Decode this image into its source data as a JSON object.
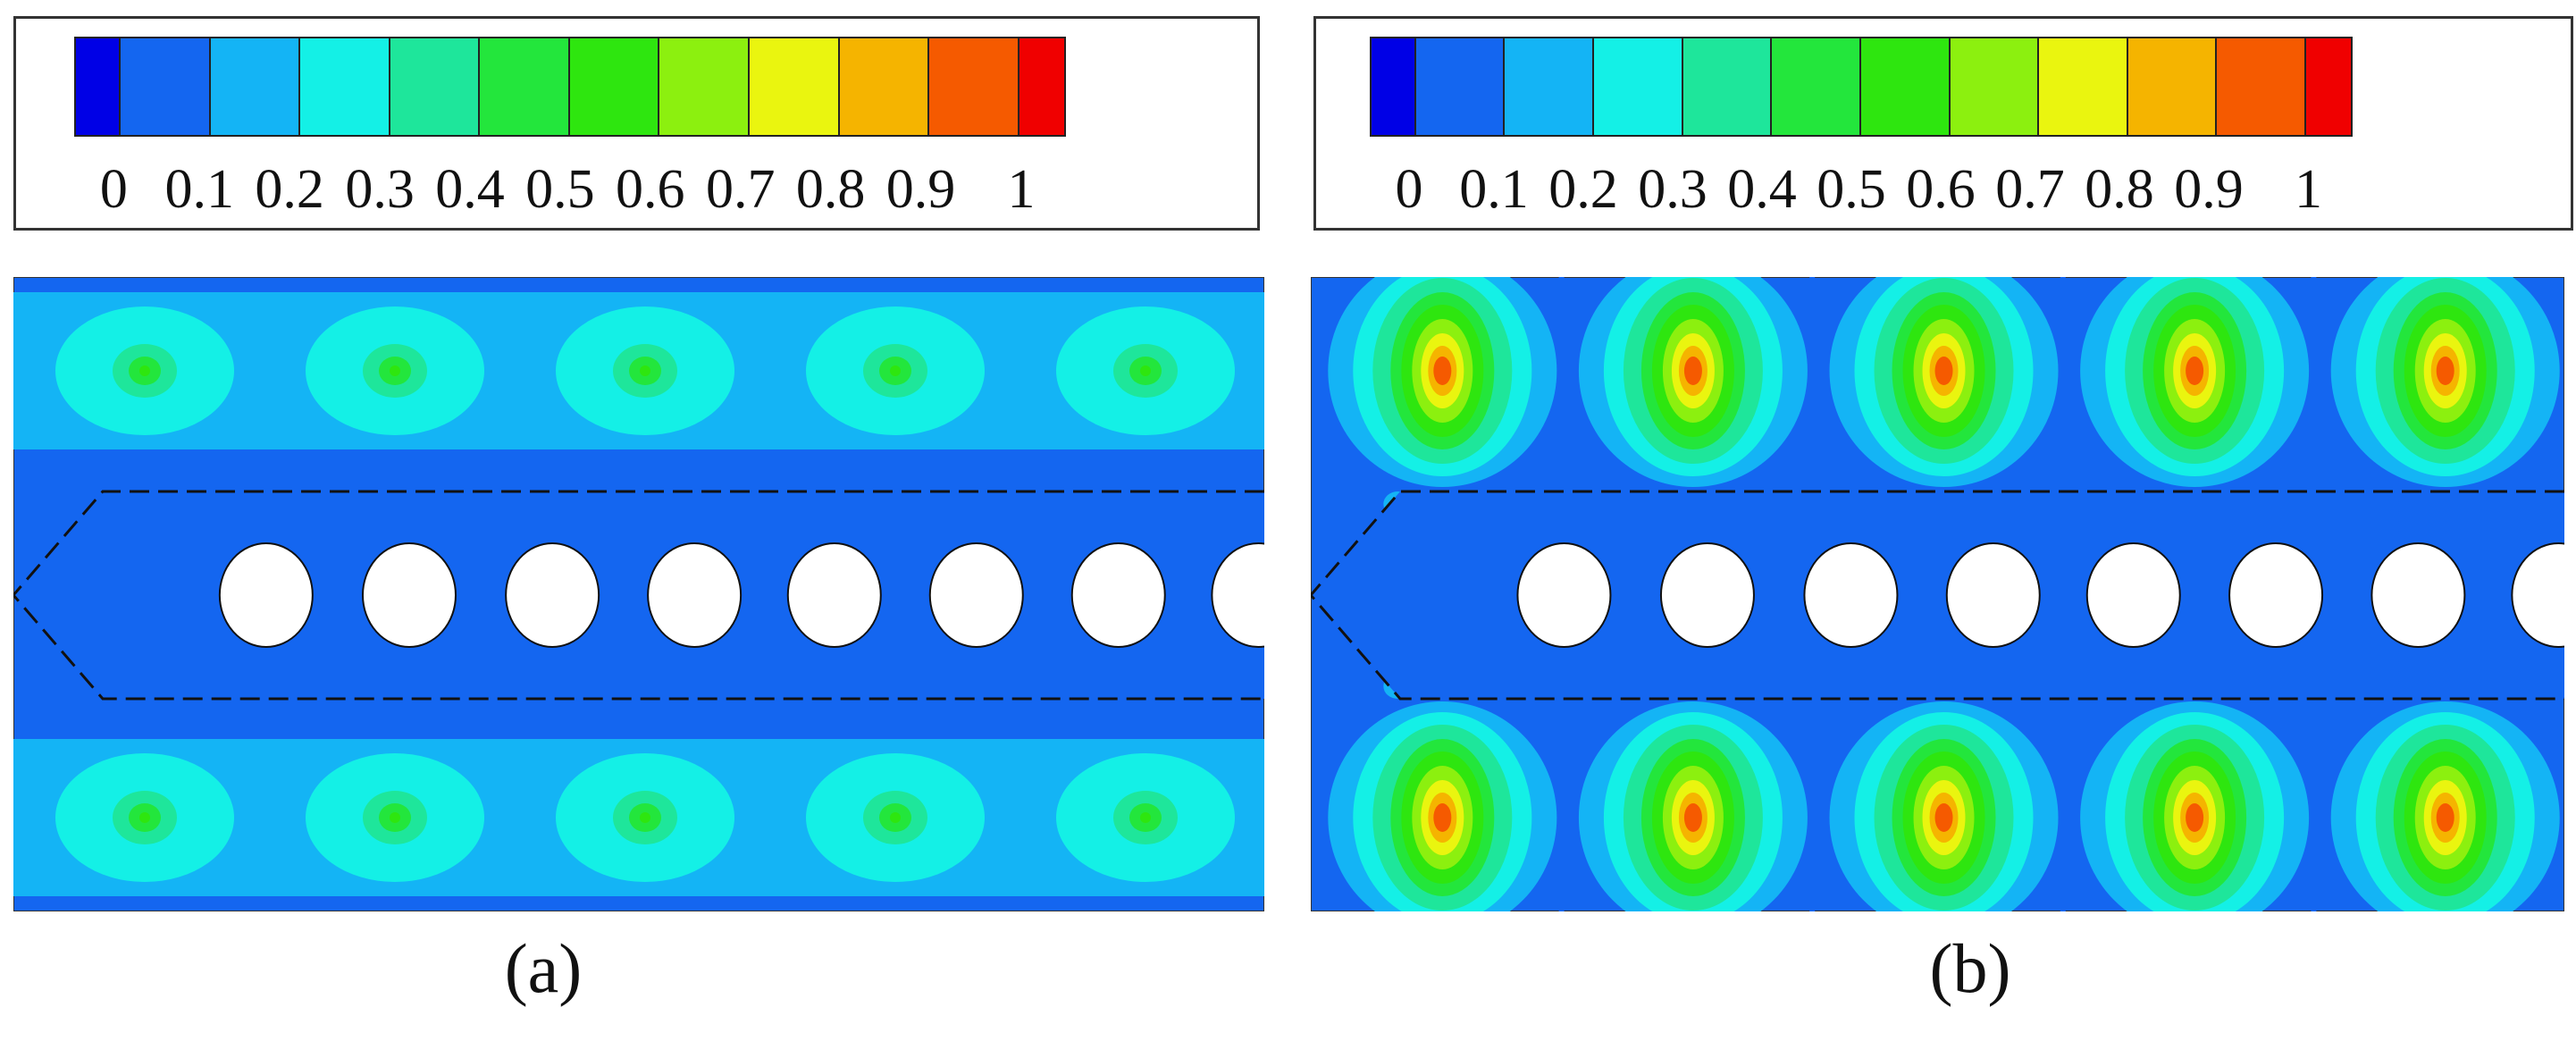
{
  "colorscale": {
    "colors": [
      "#0000e6",
      "#1466f0",
      "#14b4f5",
      "#14f0e6",
      "#1ee69b",
      "#23e63c",
      "#2ee60f",
      "#8cf00f",
      "#eaf50f",
      "#f5b400",
      "#f55a00",
      "#f00000"
    ],
    "tick_labels": [
      "0",
      "0.1",
      "0.2",
      "0.3",
      "0.4",
      "0.5",
      "0.6",
      "0.7",
      "0.8",
      "0.9",
      "1"
    ]
  },
  "panels": [
    {
      "caption": "(a)"
    },
    {
      "caption": "(b)"
    }
  ]
}
